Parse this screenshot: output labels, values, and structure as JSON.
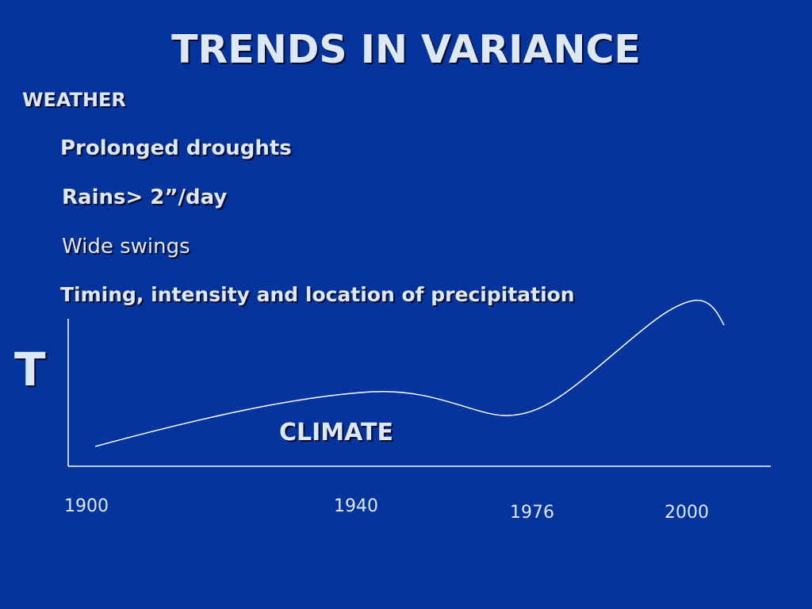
{
  "slide": {
    "title": "TRENDS IN VARIANCE",
    "heading": "WEATHER",
    "bullets": [
      "Prolonged droughts",
      "Rains> 2”/day",
      "Wide swings",
      "Timing, intensity and location of precipitation"
    ]
  },
  "graph": {
    "y_label": "T",
    "curve_label": "CLIMATE",
    "x_labels": [
      "1900",
      "1940",
      "1976",
      "2000"
    ]
  },
  "colors": {
    "background": "#02349b",
    "text": "#dde8f6",
    "line": "#ffffff"
  }
}
